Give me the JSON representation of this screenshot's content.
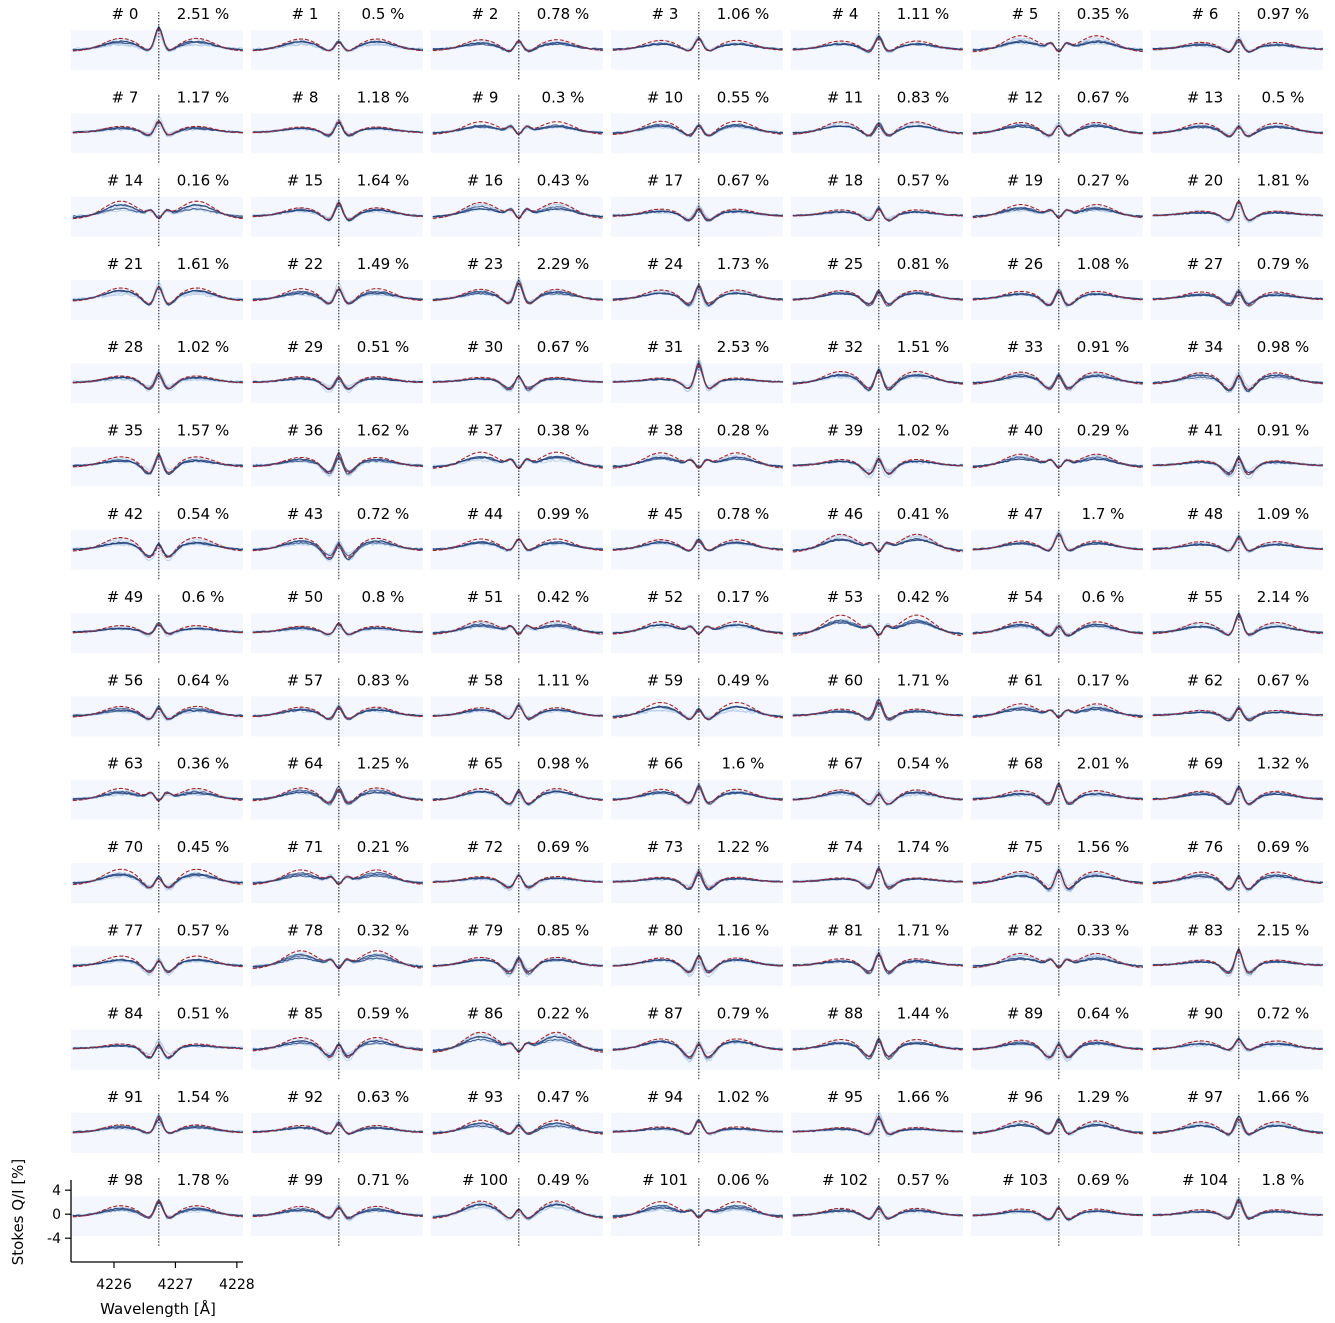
{
  "figure": {
    "ylabel": "Stokes Q/I [%]",
    "xlabel": "Wavelength [Å]",
    "x_ticks": [
      "4226",
      "4227",
      "4228"
    ],
    "y_ticks": [
      "4",
      "0",
      "-4"
    ],
    "x_tick_values": [
      4226,
      4227,
      4228
    ],
    "y_tick_values": [
      4,
      0,
      -4
    ],
    "x_range": [
      4225.3,
      4228.1
    ],
    "y_range": [
      -7,
      7
    ],
    "line_center": 4226.73,
    "colors": {
      "panel_background": "#f4f8fe",
      "observed_profiles": "#1f3f7a",
      "observed_spread": "#a9c4e6",
      "model_profile": "#b22222",
      "center_line": "#000000"
    }
  },
  "chart_data": {
    "type": "line",
    "layout": "small multiples, 7 columns x 15 rows",
    "x_unit": "Å",
    "y_unit": "%",
    "panels": [
      {
        "id": "# 0",
        "pct": "2.51 %",
        "v": 2.51
      },
      {
        "id": "# 1",
        "pct": "0.5 %",
        "v": 0.5
      },
      {
        "id": "# 2",
        "pct": "0.78 %",
        "v": 0.78
      },
      {
        "id": "# 3",
        "pct": "1.06 %",
        "v": 1.06
      },
      {
        "id": "# 4",
        "pct": "1.11 %",
        "v": 1.11
      },
      {
        "id": "# 5",
        "pct": "0.35 %",
        "v": 0.35
      },
      {
        "id": "# 6",
        "pct": "0.97 %",
        "v": 0.97
      },
      {
        "id": "# 7",
        "pct": "1.17 %",
        "v": 1.17
      },
      {
        "id": "# 8",
        "pct": "1.18 %",
        "v": 1.18
      },
      {
        "id": "# 9",
        "pct": "0.3 %",
        "v": 0.3
      },
      {
        "id": "# 10",
        "pct": "0.55 %",
        "v": 0.55
      },
      {
        "id": "# 11",
        "pct": "0.83 %",
        "v": 0.83
      },
      {
        "id": "# 12",
        "pct": "0.67 %",
        "v": 0.67
      },
      {
        "id": "# 13",
        "pct": "0.5 %",
        "v": 0.5
      },
      {
        "id": "# 14",
        "pct": "0.16 %",
        "v": 0.16
      },
      {
        "id": "# 15",
        "pct": "1.64 %",
        "v": 1.64
      },
      {
        "id": "# 16",
        "pct": "0.43 %",
        "v": 0.43
      },
      {
        "id": "# 17",
        "pct": "0.67 %",
        "v": 0.67
      },
      {
        "id": "# 18",
        "pct": "0.57 %",
        "v": 0.57
      },
      {
        "id": "# 19",
        "pct": "0.27 %",
        "v": 0.27
      },
      {
        "id": "# 20",
        "pct": "1.81 %",
        "v": 1.81
      },
      {
        "id": "# 21",
        "pct": "1.61 %",
        "v": 1.61
      },
      {
        "id": "# 22",
        "pct": "1.49 %",
        "v": 1.49
      },
      {
        "id": "# 23",
        "pct": "2.29 %",
        "v": 2.29
      },
      {
        "id": "# 24",
        "pct": "1.73 %",
        "v": 1.73
      },
      {
        "id": "# 25",
        "pct": "0.81 %",
        "v": 0.81
      },
      {
        "id": "# 26",
        "pct": "1.08 %",
        "v": 1.08
      },
      {
        "id": "# 27",
        "pct": "0.79 %",
        "v": 0.79
      },
      {
        "id": "# 28",
        "pct": "1.02 %",
        "v": 1.02
      },
      {
        "id": "# 29",
        "pct": "0.51 %",
        "v": 0.51
      },
      {
        "id": "# 30",
        "pct": "0.67 %",
        "v": 0.67
      },
      {
        "id": "# 31",
        "pct": "2.53 %",
        "v": 2.53
      },
      {
        "id": "# 32",
        "pct": "1.51 %",
        "v": 1.51
      },
      {
        "id": "# 33",
        "pct": "0.91 %",
        "v": 0.91
      },
      {
        "id": "# 34",
        "pct": "0.98 %",
        "v": 0.98
      },
      {
        "id": "# 35",
        "pct": "1.57 %",
        "v": 1.57
      },
      {
        "id": "# 36",
        "pct": "1.62 %",
        "v": 1.62
      },
      {
        "id": "# 37",
        "pct": "0.38 %",
        "v": 0.38
      },
      {
        "id": "# 38",
        "pct": "0.28 %",
        "v": 0.28
      },
      {
        "id": "# 39",
        "pct": "1.02 %",
        "v": 1.02
      },
      {
        "id": "# 40",
        "pct": "0.29 %",
        "v": 0.29
      },
      {
        "id": "# 41",
        "pct": "0.91 %",
        "v": 0.91
      },
      {
        "id": "# 42",
        "pct": "0.54 %",
        "v": 0.54
      },
      {
        "id": "# 43",
        "pct": "0.72 %",
        "v": 0.72
      },
      {
        "id": "# 44",
        "pct": "0.99 %",
        "v": 0.99
      },
      {
        "id": "# 45",
        "pct": "0.78 %",
        "v": 0.78
      },
      {
        "id": "# 46",
        "pct": "0.41 %",
        "v": 0.41
      },
      {
        "id": "# 47",
        "pct": "1.7 %",
        "v": 1.7
      },
      {
        "id": "# 48",
        "pct": "1.09 %",
        "v": 1.09
      },
      {
        "id": "# 49",
        "pct": "0.6 %",
        "v": 0.6
      },
      {
        "id": "# 50",
        "pct": "0.8 %",
        "v": 0.8
      },
      {
        "id": "# 51",
        "pct": "0.42 %",
        "v": 0.42
      },
      {
        "id": "# 52",
        "pct": "0.17 %",
        "v": 0.17
      },
      {
        "id": "# 53",
        "pct": "0.42 %",
        "v": 0.42
      },
      {
        "id": "# 54",
        "pct": "0.6 %",
        "v": 0.6
      },
      {
        "id": "# 55",
        "pct": "2.14 %",
        "v": 2.14
      },
      {
        "id": "# 56",
        "pct": "0.64 %",
        "v": 0.64
      },
      {
        "id": "# 57",
        "pct": "0.83 %",
        "v": 0.83
      },
      {
        "id": "# 58",
        "pct": "1.11 %",
        "v": 1.11
      },
      {
        "id": "# 59",
        "pct": "0.49 %",
        "v": 0.49
      },
      {
        "id": "# 60",
        "pct": "1.71 %",
        "v": 1.71
      },
      {
        "id": "# 61",
        "pct": "0.17 %",
        "v": 0.17
      },
      {
        "id": "# 62",
        "pct": "0.67 %",
        "v": 0.67
      },
      {
        "id": "# 63",
        "pct": "0.36 %",
        "v": 0.36
      },
      {
        "id": "# 64",
        "pct": "1.25 %",
        "v": 1.25
      },
      {
        "id": "# 65",
        "pct": "0.98 %",
        "v": 0.98
      },
      {
        "id": "# 66",
        "pct": "1.6 %",
        "v": 1.6
      },
      {
        "id": "# 67",
        "pct": "0.54 %",
        "v": 0.54
      },
      {
        "id": "# 68",
        "pct": "2.01 %",
        "v": 2.01
      },
      {
        "id": "# 69",
        "pct": "1.32 %",
        "v": 1.32
      },
      {
        "id": "# 70",
        "pct": "0.45 %",
        "v": 0.45
      },
      {
        "id": "# 71",
        "pct": "0.21 %",
        "v": 0.21
      },
      {
        "id": "# 72",
        "pct": "0.69 %",
        "v": 0.69
      },
      {
        "id": "# 73",
        "pct": "1.22 %",
        "v": 1.22
      },
      {
        "id": "# 74",
        "pct": "1.74 %",
        "v": 1.74
      },
      {
        "id": "# 75",
        "pct": "1.56 %",
        "v": 1.56
      },
      {
        "id": "# 76",
        "pct": "0.69 %",
        "v": 0.69
      },
      {
        "id": "# 77",
        "pct": "0.57 %",
        "v": 0.57
      },
      {
        "id": "# 78",
        "pct": "0.32 %",
        "v": 0.32
      },
      {
        "id": "# 79",
        "pct": "0.85 %",
        "v": 0.85
      },
      {
        "id": "# 80",
        "pct": "1.16 %",
        "v": 1.16
      },
      {
        "id": "# 81",
        "pct": "1.71 %",
        "v": 1.71
      },
      {
        "id": "# 82",
        "pct": "0.33 %",
        "v": 0.33
      },
      {
        "id": "# 83",
        "pct": "2.15 %",
        "v": 2.15
      },
      {
        "id": "# 84",
        "pct": "0.51 %",
        "v": 0.51
      },
      {
        "id": "# 85",
        "pct": "0.59 %",
        "v": 0.59
      },
      {
        "id": "# 86",
        "pct": "0.22 %",
        "v": 0.22
      },
      {
        "id": "# 87",
        "pct": "0.79 %",
        "v": 0.79
      },
      {
        "id": "# 88",
        "pct": "1.44 %",
        "v": 1.44
      },
      {
        "id": "# 89",
        "pct": "0.64 %",
        "v": 0.64
      },
      {
        "id": "# 90",
        "pct": "0.72 %",
        "v": 0.72
      },
      {
        "id": "# 91",
        "pct": "1.54 %",
        "v": 1.54
      },
      {
        "id": "# 92",
        "pct": "0.63 %",
        "v": 0.63
      },
      {
        "id": "# 93",
        "pct": "0.47 %",
        "v": 0.47
      },
      {
        "id": "# 94",
        "pct": "1.02 %",
        "v": 1.02
      },
      {
        "id": "# 95",
        "pct": "1.66 %",
        "v": 1.66
      },
      {
        "id": "# 96",
        "pct": "1.29 %",
        "v": 1.29
      },
      {
        "id": "# 97",
        "pct": "1.66 %",
        "v": 1.66
      },
      {
        "id": "# 98",
        "pct": "1.78 %",
        "v": 1.78
      },
      {
        "id": "# 99",
        "pct": "0.71 %",
        "v": 0.71
      },
      {
        "id": "# 100",
        "pct": "0.49 %",
        "v": 0.49
      },
      {
        "id": "# 101",
        "pct": "0.06 %",
        "v": 0.06
      },
      {
        "id": "# 102",
        "pct": "0.57 %",
        "v": 0.57
      },
      {
        "id": "# 103",
        "pct": "0.69 %",
        "v": 0.69
      },
      {
        "id": "# 104",
        "pct": "1.8 %",
        "v": 1.8
      }
    ]
  }
}
